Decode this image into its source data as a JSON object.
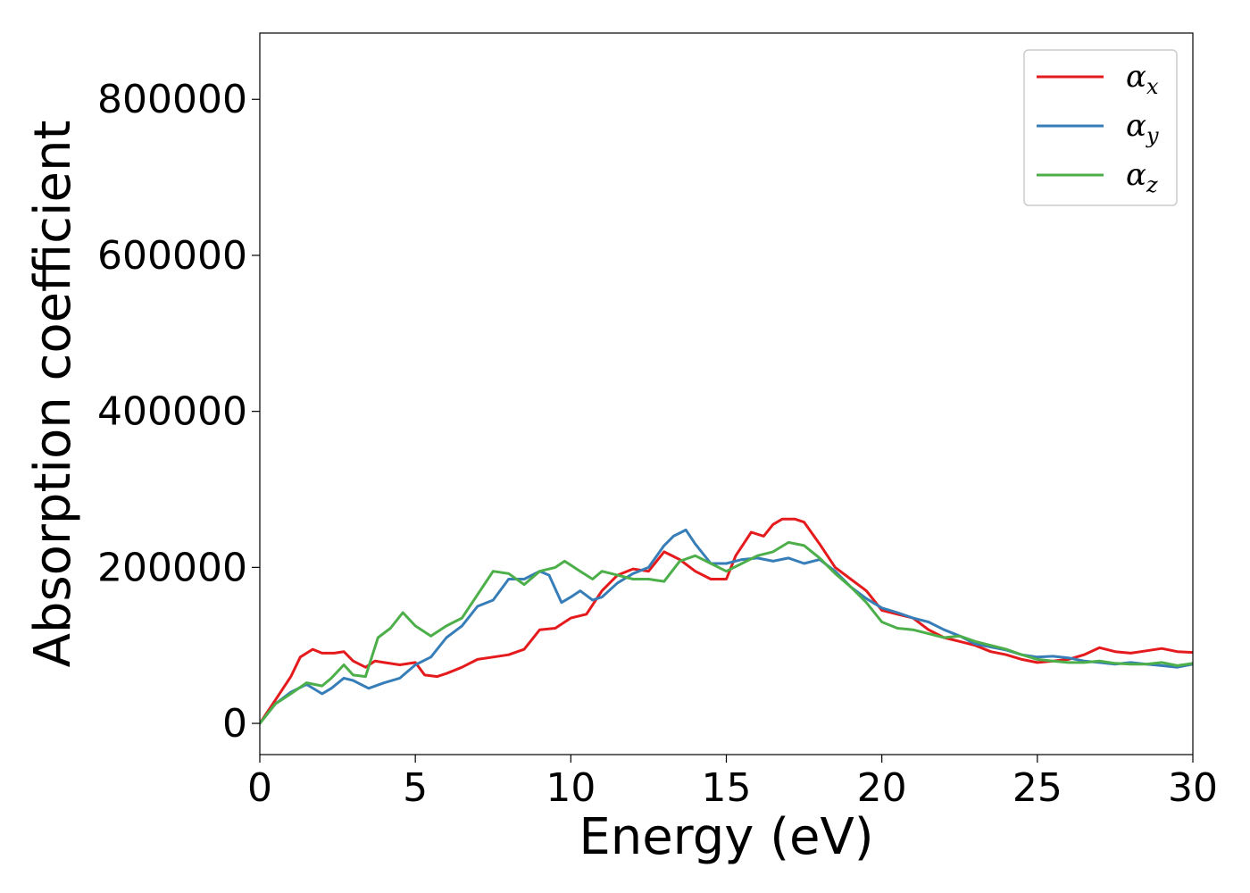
{
  "chart_data": {
    "type": "line",
    "title": "",
    "xlabel": "Energy (eV)",
    "ylabel": "Absorption coefficient",
    "xlim": [
      0,
      30
    ],
    "ylim": [
      -40000,
      885000
    ],
    "xticks": [
      0,
      5,
      10,
      15,
      20,
      25,
      30
    ],
    "yticks": [
      0,
      200000,
      400000,
      600000,
      800000
    ],
    "grid": false,
    "legend_position": "top-right",
    "series": [
      {
        "name": "α",
        "subscript": "x",
        "color": "#e41a1c",
        "x": [
          0,
          0.5,
          1.0,
          1.3,
          1.7,
          2.0,
          2.4,
          2.7,
          3.0,
          3.4,
          3.7,
          4.0,
          4.5,
          5.0,
          5.3,
          5.7,
          6.0,
          6.5,
          7.0,
          7.5,
          8.0,
          8.5,
          9.0,
          9.5,
          10.0,
          10.5,
          11.0,
          11.5,
          12.0,
          12.5,
          13.0,
          13.5,
          14.0,
          14.5,
          15.0,
          15.3,
          15.8,
          16.2,
          16.5,
          16.8,
          17.2,
          17.5,
          18.0,
          18.5,
          19.0,
          19.5,
          20.0,
          20.5,
          21.0,
          21.5,
          22.0,
          22.5,
          23.0,
          23.5,
          24.0,
          24.5,
          25.0,
          25.5,
          26.0,
          26.5,
          27.0,
          27.5,
          28.0,
          28.5,
          29.0,
          29.5,
          30.0
        ],
        "values": [
          0,
          30000,
          60000,
          85000,
          95000,
          90000,
          90000,
          92000,
          80000,
          72000,
          80000,
          78000,
          75000,
          78000,
          62000,
          60000,
          64000,
          72000,
          82000,
          85000,
          88000,
          95000,
          120000,
          122000,
          135000,
          140000,
          170000,
          190000,
          198000,
          195000,
          220000,
          210000,
          195000,
          185000,
          185000,
          215000,
          245000,
          240000,
          255000,
          262000,
          262000,
          258000,
          230000,
          200000,
          185000,
          170000,
          145000,
          140000,
          135000,
          120000,
          110000,
          105000,
          100000,
          92000,
          88000,
          82000,
          78000,
          80000,
          82000,
          88000,
          97000,
          92000,
          90000,
          93000,
          96000,
          92000,
          91000
        ]
      },
      {
        "name": "α",
        "subscript": "y",
        "color": "#377eb8",
        "x": [
          0,
          0.5,
          1.0,
          1.5,
          2.0,
          2.3,
          2.7,
          3.0,
          3.5,
          4.0,
          4.5,
          5.0,
          5.5,
          6.0,
          6.5,
          7.0,
          7.5,
          8.0,
          8.5,
          9.0,
          9.3,
          9.7,
          10.0,
          10.3,
          10.7,
          11.0,
          11.5,
          12.0,
          12.5,
          13.0,
          13.3,
          13.7,
          14.0,
          14.5,
          15.0,
          15.5,
          16.0,
          16.5,
          17.0,
          17.5,
          18.0,
          18.5,
          19.0,
          19.5,
          20.0,
          20.5,
          21.0,
          21.5,
          22.0,
          22.5,
          23.0,
          23.5,
          24.0,
          24.5,
          25.0,
          25.5,
          26.0,
          26.5,
          27.0,
          27.5,
          28.0,
          28.5,
          29.0,
          29.5,
          30.0
        ],
        "values": [
          0,
          25000,
          40000,
          50000,
          38000,
          45000,
          58000,
          55000,
          45000,
          52000,
          58000,
          75000,
          85000,
          110000,
          125000,
          150000,
          158000,
          185000,
          185000,
          195000,
          190000,
          155000,
          162000,
          170000,
          158000,
          162000,
          180000,
          192000,
          200000,
          228000,
          240000,
          248000,
          230000,
          205000,
          205000,
          210000,
          212000,
          208000,
          212000,
          205000,
          210000,
          195000,
          175000,
          160000,
          148000,
          142000,
          135000,
          130000,
          120000,
          112000,
          102000,
          98000,
          94000,
          88000,
          85000,
          86000,
          84000,
          80000,
          78000,
          76000,
          78000,
          76000,
          74000,
          72000,
          76000
        ]
      },
      {
        "name": "α",
        "subscript": "z",
        "color": "#4daf4a",
        "x": [
          0,
          0.5,
          1.0,
          1.5,
          2.0,
          2.3,
          2.7,
          3.0,
          3.4,
          3.8,
          4.2,
          4.6,
          5.0,
          5.5,
          6.0,
          6.5,
          7.0,
          7.5,
          8.0,
          8.5,
          9.0,
          9.5,
          9.8,
          10.3,
          10.7,
          11.0,
          11.5,
          12.0,
          12.5,
          13.0,
          13.5,
          14.0,
          14.5,
          15.0,
          15.5,
          16.0,
          16.5,
          17.0,
          17.5,
          18.0,
          18.5,
          19.0,
          19.5,
          20.0,
          20.5,
          21.0,
          21.5,
          22.0,
          22.5,
          23.0,
          23.5,
          24.0,
          24.5,
          25.0,
          25.5,
          26.0,
          26.5,
          27.0,
          27.5,
          28.0,
          28.5,
          29.0,
          29.5,
          30.0
        ],
        "values": [
          0,
          25000,
          38000,
          52000,
          48000,
          58000,
          75000,
          62000,
          60000,
          110000,
          122000,
          142000,
          125000,
          112000,
          125000,
          135000,
          165000,
          195000,
          192000,
          178000,
          195000,
          200000,
          208000,
          195000,
          185000,
          195000,
          190000,
          185000,
          185000,
          182000,
          208000,
          215000,
          205000,
          195000,
          205000,
          215000,
          220000,
          232000,
          228000,
          212000,
          192000,
          175000,
          155000,
          130000,
          122000,
          120000,
          115000,
          110000,
          112000,
          105000,
          100000,
          95000,
          88000,
          82000,
          80000,
          78000,
          78000,
          80000,
          77000,
          76000,
          76000,
          78000,
          74000,
          77000
        ]
      }
    ]
  }
}
